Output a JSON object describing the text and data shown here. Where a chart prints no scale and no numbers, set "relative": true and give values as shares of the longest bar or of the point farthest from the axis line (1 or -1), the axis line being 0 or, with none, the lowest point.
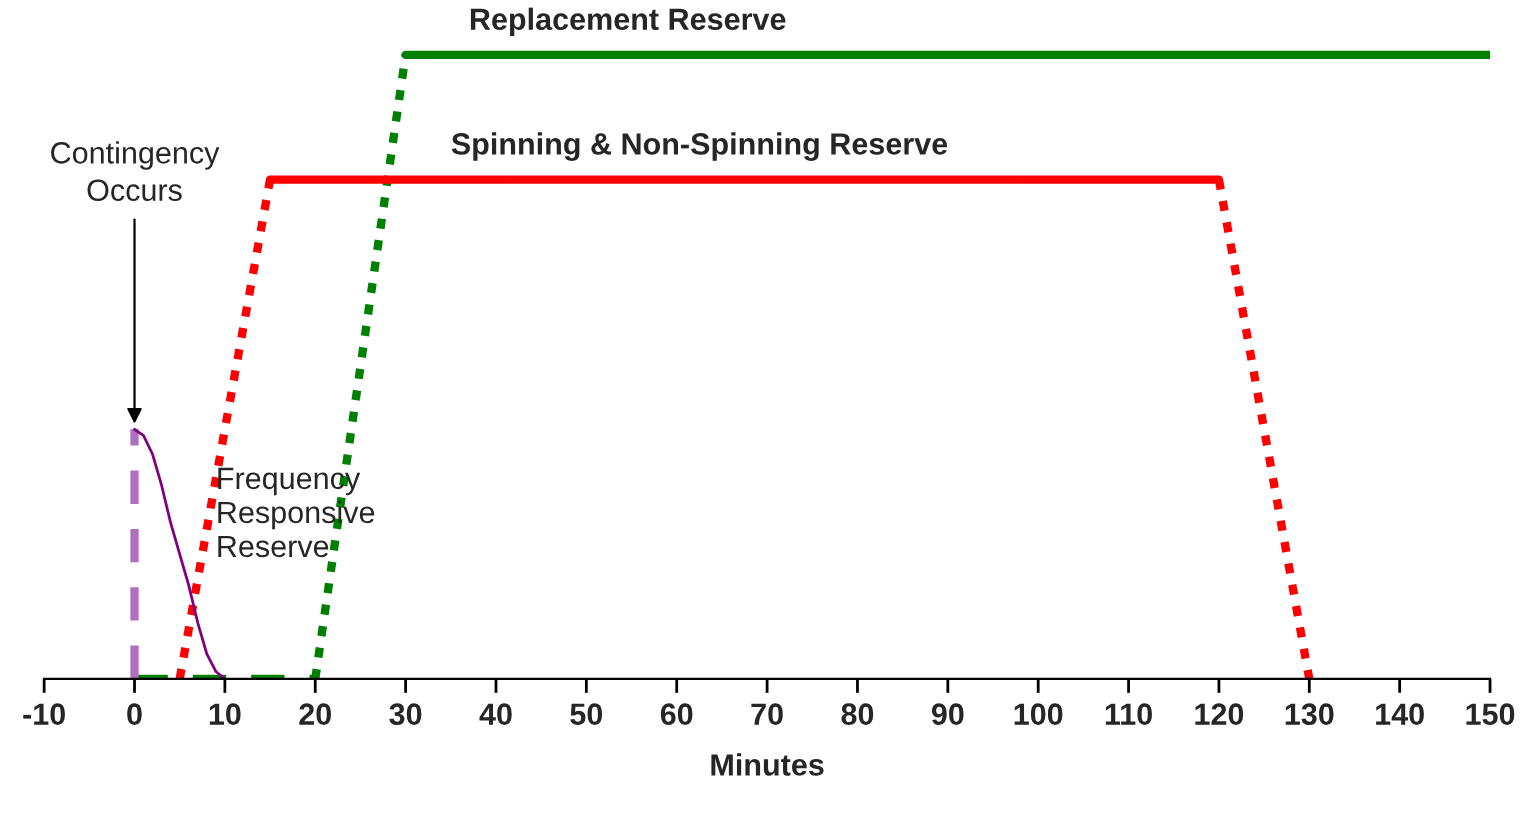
{
  "chart_data": {
    "type": "line",
    "relative": true,
    "xlabel": "Minutes",
    "xlim": [
      -10,
      150
    ],
    "xticks": [
      -10,
      0,
      10,
      20,
      30,
      40,
      50,
      60,
      70,
      80,
      90,
      100,
      110,
      120,
      130,
      140,
      150
    ],
    "grid": false,
    "legend": false,
    "marker": "none",
    "series": [
      {
        "color": "#008000",
        "line_style": "dashed",
        "x": [
          0,
          20
        ],
        "values": [
          0,
          0
        ]
      },
      {
        "color": "#008000",
        "line_style": "dotted",
        "x": [
          20,
          30
        ],
        "values": [
          0,
          1
        ]
      },
      {
        "name": "Replacement Reserve",
        "color": "#008000",
        "line_style": "solid",
        "x": [
          30,
          150
        ],
        "values": [
          1,
          1
        ]
      },
      {
        "color": "#ff0000",
        "line_style": "dotted",
        "x": [
          5,
          15
        ],
        "values": [
          0,
          0.8
        ]
      },
      {
        "name": "Spinning & Non-Spinning Reserve",
        "color": "#ff0000",
        "line_style": "solid",
        "x": [
          15,
          120
        ],
        "values": [
          0.8,
          0.8
        ]
      },
      {
        "color": "#ff0000",
        "line_style": "dotted",
        "x": [
          120,
          130
        ],
        "values": [
          0.8,
          0
        ]
      },
      {
        "color": "#b070c0",
        "line_style": "dashed",
        "x": [
          0,
          0
        ],
        "values": [
          0,
          0.4
        ]
      },
      {
        "name": "Frequency\nResponsive\nReserve",
        "color": "#800080",
        "line_style": "solid",
        "x": [
          0,
          1,
          2,
          3,
          4,
          5,
          6,
          7,
          8,
          9,
          10
        ],
        "values": [
          0.4,
          0.39,
          0.36,
          0.31,
          0.25,
          0.2,
          0.15,
          0.09,
          0.04,
          0.012,
          0
        ]
      }
    ],
    "annotations": [
      {
        "text": "Contingency\nOccurs",
        "x": 0,
        "y": 0.4
      }
    ]
  }
}
